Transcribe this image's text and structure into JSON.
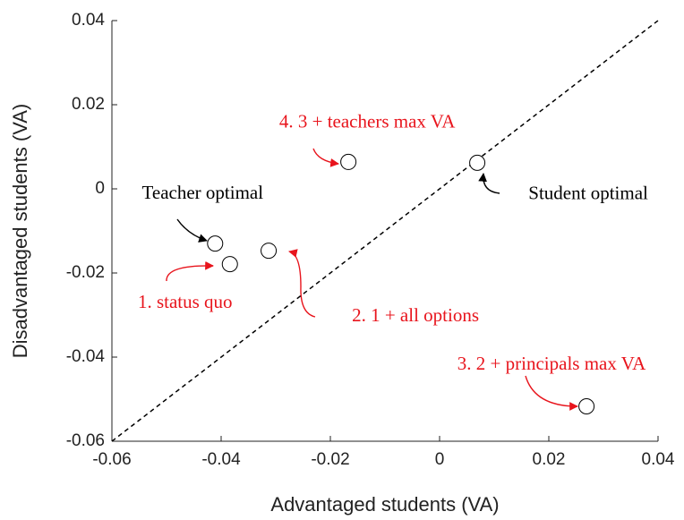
{
  "chart_data": {
    "type": "scatter",
    "xlabel": "Advantaged students (VA)",
    "ylabel": "Disadvantaged students (VA)",
    "x": [
      -0.0411,
      -0.0384,
      -0.0313,
      -0.0167,
      0.0069,
      0.0269
    ],
    "y": [
      -0.013,
      -0.0179,
      -0.0147,
      0.0064,
      0.0062,
      -0.0517
    ],
    "labels": [
      "Teacher optimal",
      "1. status quo",
      "2. 1 + all options",
      "4. 3 + teachers max VA",
      "Student optimal",
      "3. 2 + principals max VA"
    ],
    "label_colors": [
      "#000000",
      "#e8141c",
      "#e8141c",
      "#e8141c",
      "#000000",
      "#e8141c"
    ],
    "marker_color": "#000000",
    "xlim": [
      -0.06,
      0.04
    ],
    "xticks": [
      -0.06,
      -0.04,
      -0.02,
      0,
      0.02,
      0.04
    ],
    "ylim": [
      -0.06,
      0.04
    ],
    "yticks": [
      -0.06,
      -0.04,
      -0.02,
      0,
      0.02,
      0.04
    ],
    "diagonal": true
  }
}
